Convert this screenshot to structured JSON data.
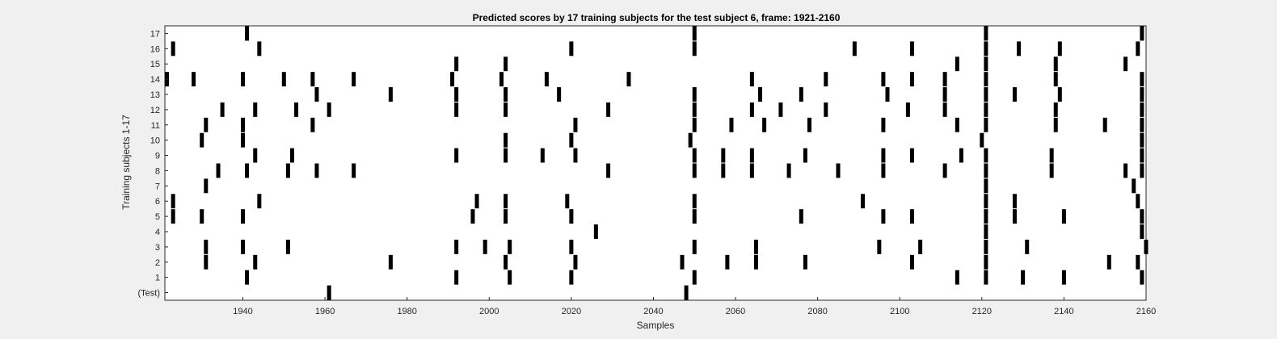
{
  "chart_data": {
    "type": "raster",
    "title": "Predicted scores by 17 training subjects for the test subject 6, frame: 1921-2160",
    "xlabel": "Samples",
    "ylabel": "Training subjects 1-17",
    "xlim": [
      1921,
      2160
    ],
    "xticks": [
      1940,
      1960,
      1980,
      2000,
      2020,
      2040,
      2060,
      2080,
      2100,
      2120,
      2140,
      2160
    ],
    "grid": false,
    "mark_color": "#000000",
    "background_color": "#ffffff",
    "rows": [
      {
        "label": "(Test)",
        "events": [
          1961,
          2048
        ]
      },
      {
        "label": "1",
        "events": [
          1941,
          1992,
          2005,
          2020,
          2050,
          2114,
          2121,
          2130,
          2140,
          2159
        ]
      },
      {
        "label": "2",
        "events": [
          1931,
          1943,
          1976,
          2004,
          2021,
          2047,
          2058,
          2065,
          2077,
          2103,
          2121,
          2151,
          2158
        ]
      },
      {
        "label": "3",
        "events": [
          1931,
          1940,
          1951,
          1992,
          1999,
          2005,
          2020,
          2050,
          2065,
          2095,
          2105,
          2121,
          2131,
          2160
        ]
      },
      {
        "label": "4",
        "events": [
          2026,
          2121,
          2159
        ]
      },
      {
        "label": "5",
        "events": [
          1923,
          1930,
          1940,
          1996,
          2004,
          2020,
          2050,
          2076,
          2096,
          2103,
          2121,
          2128,
          2140,
          2159
        ]
      },
      {
        "label": "6",
        "events": [
          1923,
          1944,
          1997,
          2004,
          2019,
          2050,
          2091,
          2121,
          2128,
          2158
        ]
      },
      {
        "label": "7",
        "events": [
          1931,
          2121,
          2157
        ]
      },
      {
        "label": "8",
        "events": [
          1934,
          1941,
          1951,
          1958,
          1967,
          2029,
          2050,
          2057,
          2064,
          2073,
          2085,
          2096,
          2111,
          2121,
          2137,
          2155,
          2159
        ]
      },
      {
        "label": "9",
        "events": [
          1943,
          1952,
          1992,
          2004,
          2013,
          2021,
          2050,
          2057,
          2064,
          2077,
          2096,
          2103,
          2115,
          2121,
          2137,
          2159
        ]
      },
      {
        "label": "10",
        "events": [
          1930,
          1940,
          2004,
          2020,
          2049,
          2120,
          2159
        ]
      },
      {
        "label": "11",
        "events": [
          1931,
          1940,
          1957,
          2021,
          2050,
          2059,
          2067,
          2078,
          2096,
          2114,
          2121,
          2138,
          2150,
          2159
        ]
      },
      {
        "label": "12",
        "events": [
          1935,
          1943,
          1953,
          1961,
          1992,
          2004,
          2029,
          2050,
          2064,
          2071,
          2082,
          2102,
          2111,
          2121,
          2138,
          2159
        ]
      },
      {
        "label": "13",
        "events": [
          1958,
          1976,
          1992,
          2004,
          2017,
          2050,
          2066,
          2076,
          2097,
          2111,
          2121,
          2128,
          2139,
          2159
        ]
      },
      {
        "label": "14",
        "events": [
          1921,
          1928,
          1940,
          1950,
          1957,
          1967,
          1991,
          2003,
          2014,
          2034,
          2064,
          2082,
          2096,
          2103,
          2111,
          2121,
          2138,
          2159
        ]
      },
      {
        "label": "15",
        "events": [
          1992,
          2004,
          2114,
          2121,
          2138,
          2155
        ]
      },
      {
        "label": "16",
        "events": [
          1923,
          1944,
          2020,
          2050,
          2089,
          2103,
          2121,
          2129,
          2139,
          2158
        ]
      },
      {
        "label": "17",
        "events": [
          1941,
          2050,
          2121,
          2159
        ]
      }
    ]
  }
}
